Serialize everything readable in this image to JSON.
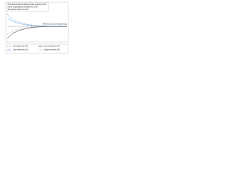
{
  "chart_data": {
    "type": "line",
    "annotation": [
      "The area inside the approximate position of the",
      "noise amplification as different to the",
      "theoretical reference limit"
    ],
    "x_label": "Reference concentration (log)",
    "x": [
      0,
      1,
      2,
      3,
      4,
      5,
      6,
      7,
      8,
      9,
      10
    ],
    "xlim": [
      0,
      10
    ],
    "ylim": [
      -1,
      1
    ],
    "series": [
      {
        "name": "Coverage rate (%)",
        "color": "#1f5fbf",
        "dash": true,
        "values": [
          0.9,
          0.5,
          0.3,
          0.18,
          0.1,
          0.05,
          0.03,
          0.02,
          0.02,
          0.02,
          0.02
        ]
      },
      {
        "name": "Low frequency (%)",
        "color": "#222222",
        "dash": false,
        "values": [
          -0.9,
          -0.5,
          -0.3,
          -0.18,
          -0.1,
          -0.05,
          -0.03,
          -0.02,
          -0.02,
          -0.02,
          -0.02
        ]
      },
      {
        "name": "Low sensitivity (%)",
        "color": "#5aa0e0",
        "dash": false,
        "values": [
          0.6,
          0.35,
          0.2,
          0.12,
          0.07,
          0.04,
          0.02,
          0.01,
          0.01,
          0.01,
          0.01
        ]
      },
      {
        "name": "High sensitivity (%)",
        "color": "#888888",
        "dash": true,
        "values": [
          -0.6,
          -0.35,
          -0.2,
          -0.12,
          -0.07,
          -0.04,
          -0.02,
          -0.01,
          -0.01,
          -0.01,
          -0.01
        ]
      }
    ]
  }
}
